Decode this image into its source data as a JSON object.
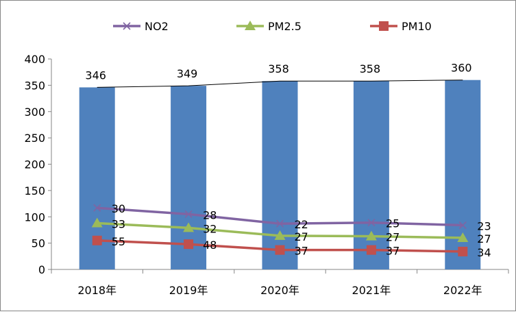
{
  "chart_data": {
    "type": "bar",
    "categories": [
      "2018年",
      "2019年",
      "2020年",
      "2021年",
      "2022年"
    ],
    "ylim": [
      0,
      400
    ],
    "yticks": [
      0,
      50,
      100,
      150,
      200,
      250,
      300,
      350,
      400
    ],
    "bar_series": {
      "values": [
        346,
        349,
        358,
        358,
        360
      ],
      "labels": [
        "346",
        "349",
        "358",
        "358",
        "360"
      ],
      "color": "#4f81bd"
    },
    "trend_line": {
      "color": "#000000"
    },
    "series": [
      {
        "name": "NO2",
        "plotted_values": [
          117,
          105,
          87,
          89,
          84
        ],
        "labels": [
          "30",
          "28",
          "22",
          "25",
          "23"
        ],
        "color": "#8064a2",
        "marker": "x"
      },
      {
        "name": "PM2.5",
        "plotted_values": [
          88,
          79,
          64,
          63,
          60
        ],
        "labels": [
          "33",
          "32",
          "27",
          "27",
          "27"
        ],
        "color": "#9bbb59",
        "marker": "triangle"
      },
      {
        "name": "PM10",
        "plotted_values": [
          55,
          48,
          37,
          37,
          34
        ],
        "labels": [
          "55",
          "48",
          "37",
          "37",
          "34"
        ],
        "color": "#c0504d",
        "marker": "square"
      }
    ],
    "legend_position": "top",
    "grid": false,
    "frame_color": "#868686"
  }
}
